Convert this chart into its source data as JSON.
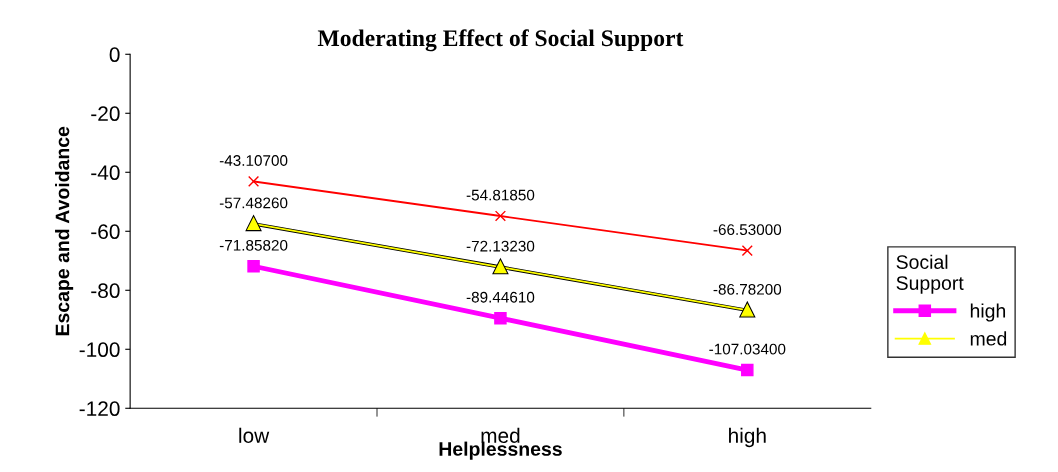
{
  "chart_data": {
    "type": "line",
    "title": "Moderating Effect of Social Support",
    "xlabel": "Helplessness",
    "ylabel": "Escape and Avoidance",
    "legend_title": "Social Support",
    "categories": [
      "low",
      "med",
      "high"
    ],
    "series": [
      {
        "color": "#ff0000",
        "marker": "cross",
        "values": [
          -43.107,
          -54.8185,
          -66.53
        ],
        "value_labels": [
          "-43.10700",
          "-54.81850",
          "-66.53000"
        ]
      },
      {
        "name": "high",
        "color": "#ff00ff",
        "marker": "square",
        "values": [
          -71.8582,
          -89.4461,
          -107.034
        ],
        "value_labels": [
          "-71.85820",
          "-89.44610",
          "-107.03400"
        ]
      },
      {
        "name": "med",
        "color": "#ffff00",
        "marker": "triangle",
        "values": [
          -57.4826,
          -72.1323,
          -86.782
        ],
        "value_labels": [
          "-57.48260",
          "-72.13230",
          "-86.78200"
        ]
      }
    ],
    "ylim": [
      -120,
      0
    ],
    "yticks": [
      -120,
      -100,
      -80,
      -60,
      -40,
      -20,
      0
    ],
    "grid": false,
    "legend": "right"
  }
}
